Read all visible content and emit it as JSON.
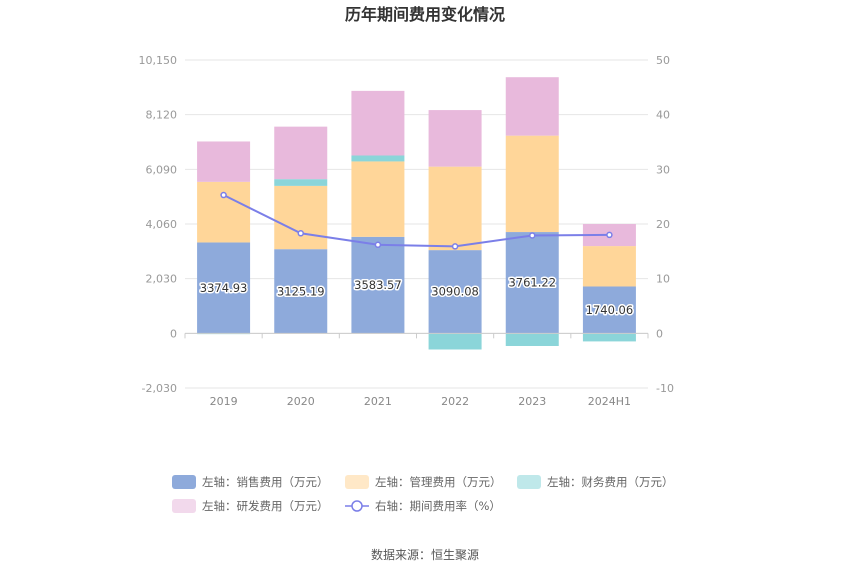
{
  "chart_data": {
    "type": "bar",
    "title": "历年期间费用变化情况",
    "categories": [
      "2019",
      "2020",
      "2021",
      "2022",
      "2023",
      "2024H1"
    ],
    "left_axis": {
      "ticks": [
        "-2,030",
        "0",
        "2,030",
        "4,060",
        "6,090",
        "8,120",
        "10,150"
      ],
      "ylim": [
        -2030,
        10150
      ]
    },
    "right_axis": {
      "ticks": [
        "-10",
        "0",
        "10",
        "20",
        "30",
        "40",
        "50"
      ],
      "ylim": [
        -10,
        50
      ]
    },
    "series": [
      {
        "name": "左轴：销售费用（万元）",
        "kind": "bar",
        "axis": "left",
        "color": "#8eaadb",
        "values": [
          3374.93,
          3125.19,
          3583.57,
          3090.08,
          3761.22,
          1740.06
        ],
        "labels": [
          "3374.93",
          "3125.19",
          "3583.57",
          "3090.08",
          "3761.22",
          "1740.06"
        ]
      },
      {
        "name": "左轴：管理费用（万元）",
        "kind": "bar",
        "axis": "left",
        "color": "#ffd699",
        "values": [
          2250,
          2350,
          2800,
          3100,
          3580,
          1500
        ]
      },
      {
        "name": "左轴：财务费用（万元）",
        "kind": "bar",
        "axis": "left",
        "color": "#8bd5d9",
        "values": [
          -30,
          250,
          220,
          -600,
          -470,
          -300
        ]
      },
      {
        "name": "左轴：研发费用（万元）",
        "kind": "bar",
        "axis": "left",
        "color": "#e8b9dc",
        "values": [
          1500,
          1950,
          2400,
          2100,
          2170,
          820
        ]
      },
      {
        "name": "右轴：期间费用率（%）",
        "kind": "line",
        "axis": "right",
        "color": "#7b7fe8",
        "values": [
          25.3,
          18.3,
          16.2,
          15.9,
          17.9,
          18.0
        ]
      }
    ],
    "legend_position": "bottom",
    "grid": true
  },
  "source_label": "数据来源：恒生聚源"
}
